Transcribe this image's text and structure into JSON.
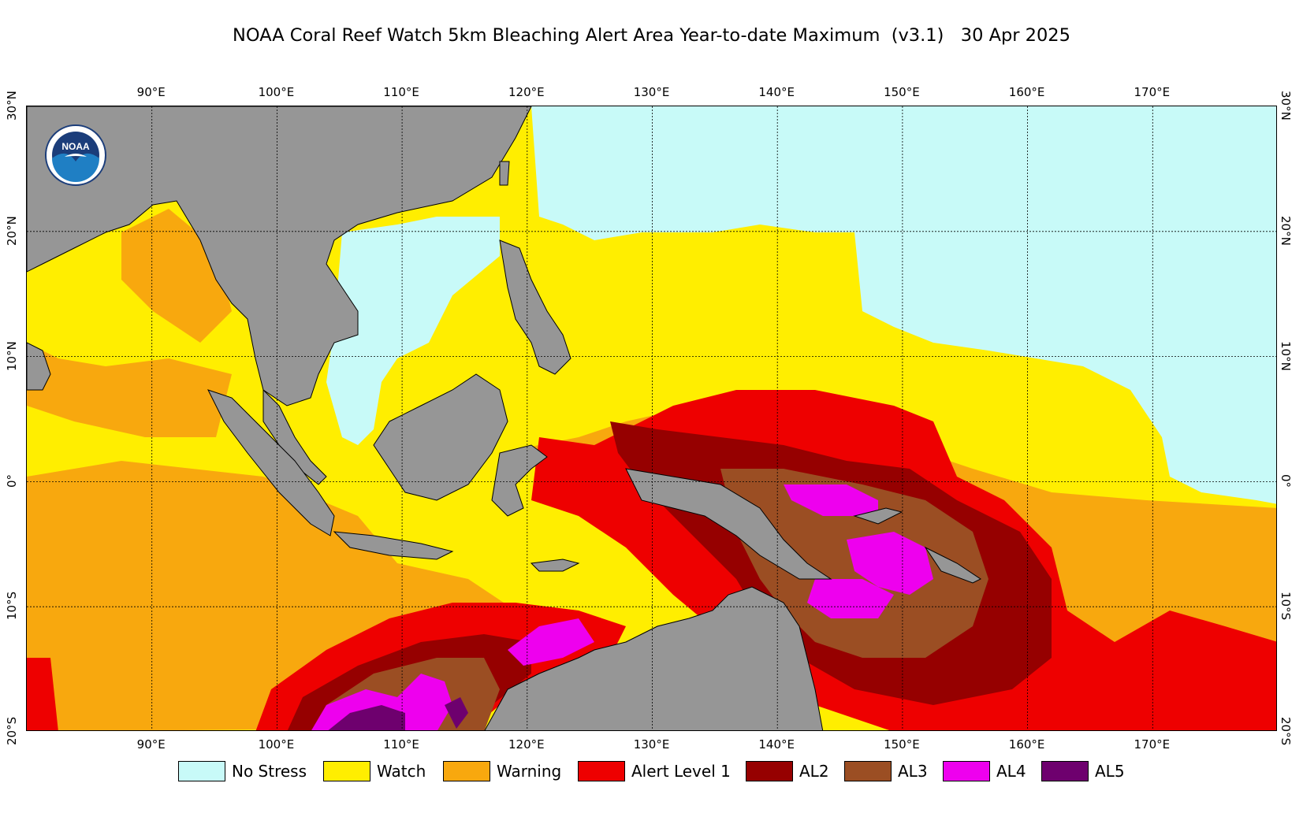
{
  "title": "NOAA Coral Reef Watch 5km Bleaching Alert Area Year-to-date Maximum  (v3.1)   30 Apr 2025",
  "logo": {
    "text": "NOAA",
    "ring_text": "NATIONAL OCEANIC AND ATMOSPHERIC ADMINISTRATION · U.S. DEPARTMENT OF COMMERCE"
  },
  "map": {
    "lon_range": [
      80,
      180
    ],
    "lat_range": [
      -20,
      30
    ],
    "lon_ticks": [
      "90°E",
      "100°E",
      "110°E",
      "120°E",
      "130°E",
      "140°E",
      "150°E",
      "160°E",
      "170°E"
    ],
    "lat_ticks": [
      "30°N",
      "20°N",
      "10°N",
      "0°",
      "10°S",
      "20°S"
    ],
    "land_color": "#969696",
    "gridlines": true
  },
  "legend": [
    {
      "label": "No Stress",
      "color": "#c8faf8"
    },
    {
      "label": "Watch",
      "color": "#ffee00"
    },
    {
      "label": "Warning",
      "color": "#f8a80e"
    },
    {
      "label": "Alert Level 1",
      "color": "#ee0000"
    },
    {
      "label": "AL2",
      "color": "#960000"
    },
    {
      "label": "AL3",
      "color": "#9b4e23"
    },
    {
      "label": "AL4",
      "color": "#ee00ee"
    },
    {
      "label": "AL5",
      "color": "#6e006e"
    }
  ]
}
